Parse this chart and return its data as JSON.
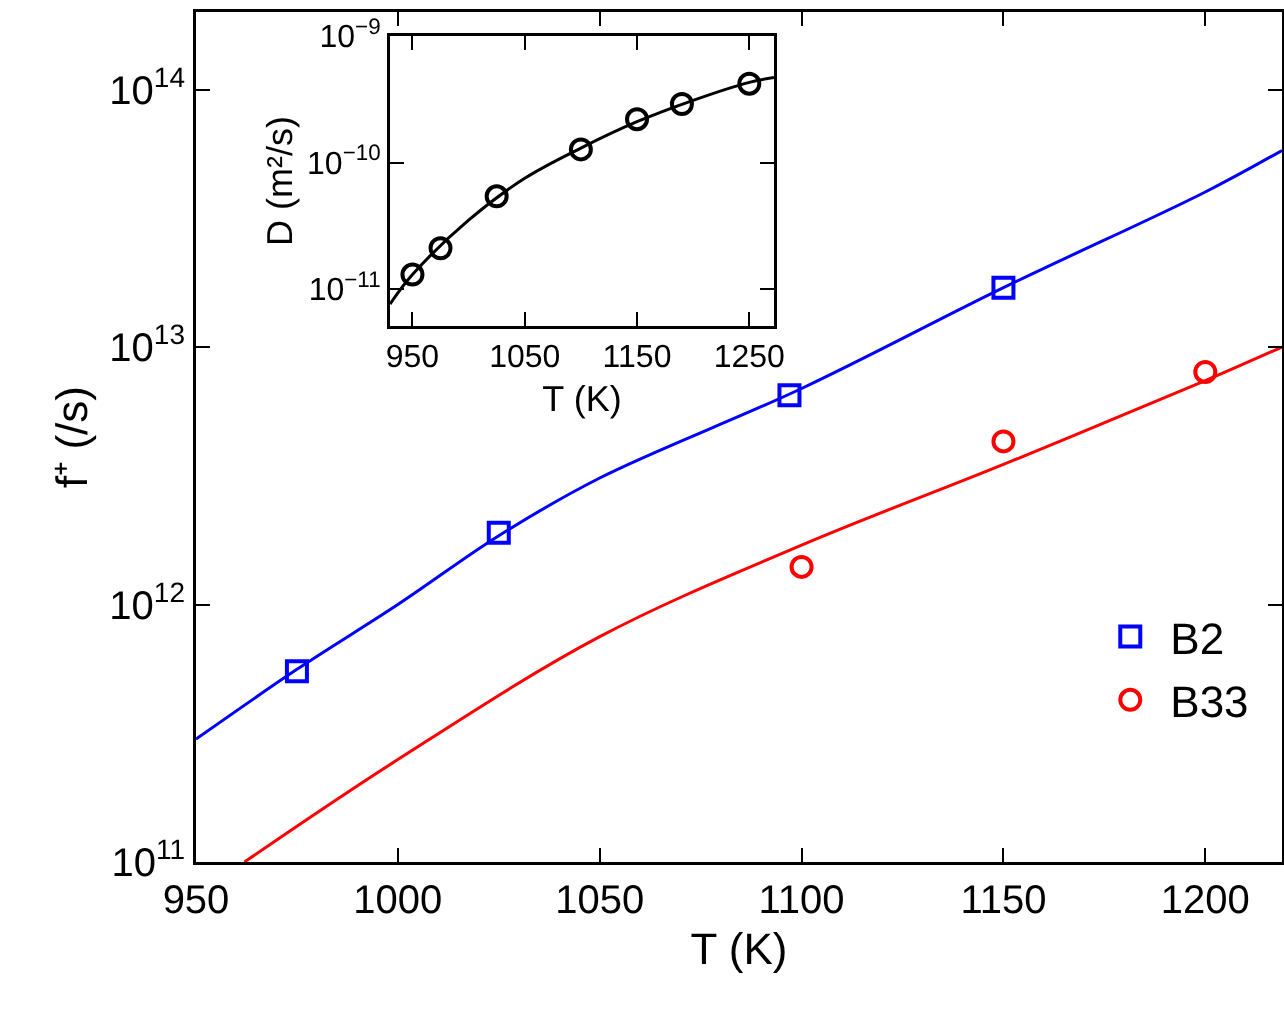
{
  "chart_data": [
    {
      "type": "scatter",
      "xlabel": "T (K)",
      "ylabel": "f⁺ (/s)",
      "log": "y",
      "grid": false,
      "legend": "bottom right",
      "xlim": [
        950,
        1219
      ],
      "xticks": [
        950,
        1000,
        1050,
        1100,
        1150,
        1200
      ],
      "ylim": [
        100000000000.0,
        200000000000000.0
      ],
      "yticks": [
        {
          "value": 100000000000.0,
          "label": "10$^{11}$"
        },
        {
          "value": 1000000000000.0,
          "label": "10$^{12}$"
        },
        {
          "value": 10000000000000.0,
          "label": "10$^{13}$"
        },
        {
          "value": 100000000000000.0,
          "label": "10$^{14}$"
        }
      ],
      "series": [
        {
          "type": "line",
          "color": "#0000ff",
          "marker": "none",
          "x": [
            950,
            975,
            1000,
            1025,
            1050,
            1100,
            1150,
            1200,
            1219
          ],
          "values": [
            300000000000.0,
            560000000000.0,
            1000000000000.0,
            1850000000000.0,
            3100000000000.0,
            6900000000000.0,
            17000000000000.0,
            40000000000000.0,
            58000000000000.0
          ]
        },
        {
          "type": "line",
          "color": "#ff0000",
          "marker": "none",
          "x": [
            962,
            1000,
            1050,
            1100,
            1150,
            1200,
            1219
          ],
          "values": [
            100000000000.0,
            250000000000.0,
            750000000000.0,
            1700000000000.0,
            3500000000000.0,
            7400000000000.0,
            10000000000000.0
          ]
        },
        {
          "name": "B2",
          "color": "#0000ff",
          "marker": "square",
          "x": [
            975,
            1025,
            1097,
            1150
          ],
          "values": [
            550000000000.0,
            1900000000000.0,
            6500000000000.0,
            17000000000000.0
          ]
        },
        {
          "name": "B33",
          "color": "#ff0000",
          "marker": "circle",
          "x": [
            1100,
            1150,
            1200
          ],
          "values": [
            1400000000000.0,
            4300000000000.0,
            8000000000000.0
          ]
        }
      ]
    },
    {
      "type": "scatter",
      "xlabel": "T (K)",
      "ylabel": "D (m²/s)",
      "log": "y",
      "grid": false,
      "legend": false,
      "xlim": [
        930,
        1272
      ],
      "xticks": [
        950,
        1050,
        1150,
        1250
      ],
      "ylim": [
        5.1e-12,
        1e-09
      ],
      "yticks": [
        {
          "value": 1e-11,
          "label": "10$^{−11}$"
        },
        {
          "value": 1e-10,
          "label": "10$^{−10}$"
        },
        {
          "value": 1e-09,
          "label": "10$^{−9}$"
        }
      ],
      "series": [
        {
          "type": "line",
          "color": "#000000",
          "marker": "none",
          "x": [
            930,
            950,
            1000,
            1050,
            1100,
            1150,
            1200,
            1250,
            1272
          ],
          "values": [
            7.6e-12,
            1.3e-11,
            3.5e-11,
            7.5e-11,
            1.3e-10,
            2.1e-10,
            3.1e-10,
            4.3e-10,
            4.7e-10
          ]
        },
        {
          "color": "#000000",
          "marker": "circle",
          "x": [
            950,
            975,
            1025,
            1100,
            1150,
            1190,
            1250
          ],
          "values": [
            1.3e-11,
            2.1e-11,
            5.4e-11,
            1.27e-10,
            2.2e-10,
            2.9e-10,
            4.2e-10
          ]
        }
      ]
    }
  ]
}
